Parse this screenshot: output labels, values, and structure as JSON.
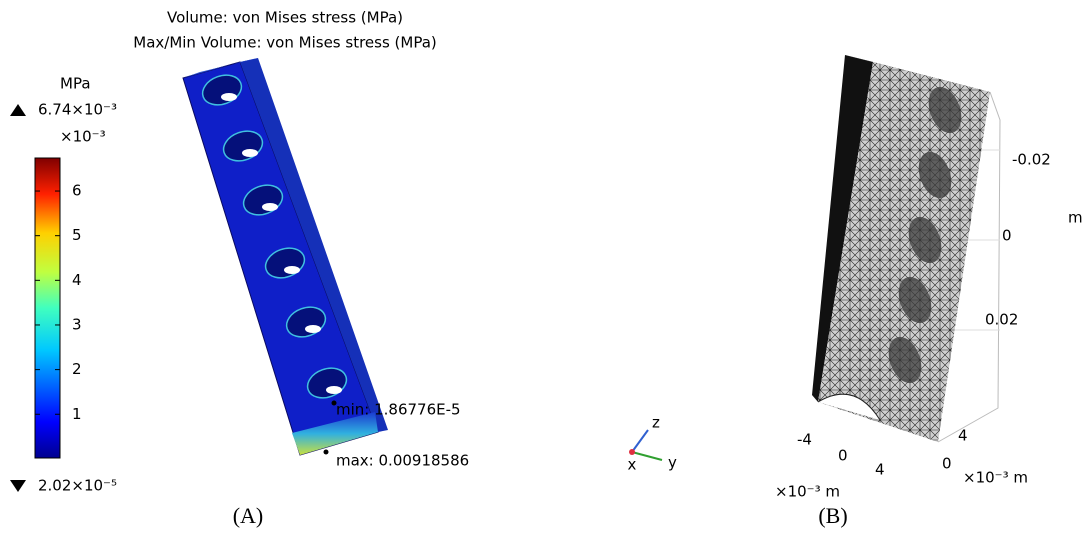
{
  "panel_a": {
    "title_lines": [
      "Volume: von Mises stress (MPa)",
      "Max/Min Volume: von Mises stress (MPa)"
    ],
    "colorbar": {
      "unit": "MPa",
      "max_label": "6.74×10⁻³",
      "multiplier": "×10⁻³",
      "min_label": "2.02×10⁻⁵",
      "range": [
        0.0202,
        6.74
      ],
      "ticks": [
        1,
        2,
        3,
        4,
        5,
        6
      ]
    },
    "min_annotation": "min: 1.86776E-5",
    "max_annotation": "max: 0.00918586",
    "triad": {
      "z": "z",
      "y": "y",
      "x": "x"
    },
    "label": "(A)"
  },
  "panel_b": {
    "vertical_ticks": [
      "-0.02",
      "0",
      "0.02"
    ],
    "vertical_unit": "m",
    "front_ticks": [
      "-4",
      "0",
      "4"
    ],
    "front_unit": "×10⁻³ m",
    "side_ticks": [
      "4",
      "0"
    ],
    "side_unit": "×10⁻³ m",
    "label": "(B)"
  }
}
